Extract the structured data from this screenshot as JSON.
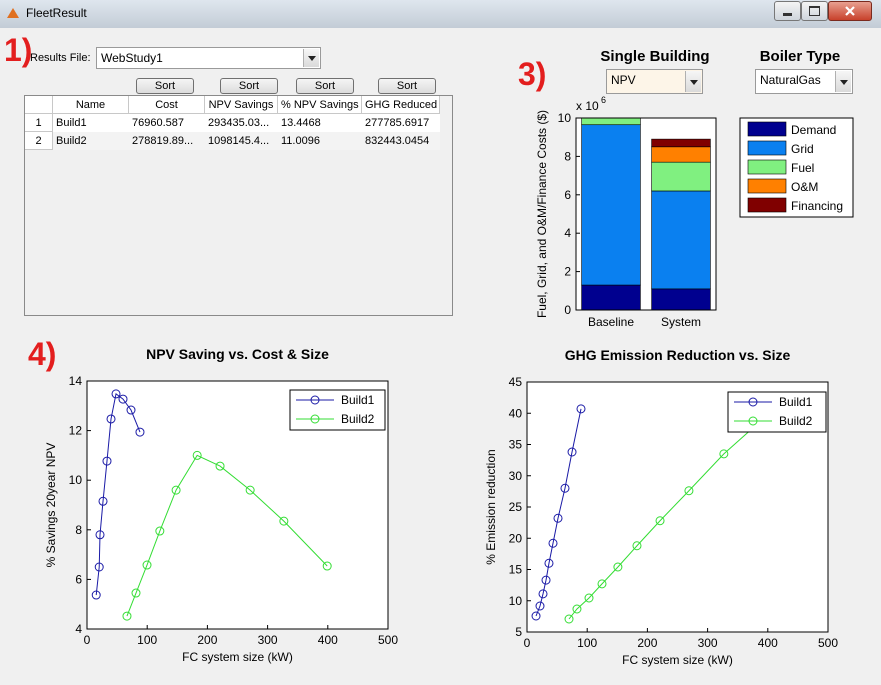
{
  "window": {
    "title": "FleetResult"
  },
  "annotations": [
    "1)",
    "2)",
    "3)",
    "4)"
  ],
  "results_file": {
    "label": "Results File:",
    "value": "WebStudy1"
  },
  "table": {
    "sort_buttons": [
      "Sort",
      "Sort",
      "Sort",
      "Sort"
    ],
    "columns": [
      "Name",
      "Cost",
      "NPV Savings",
      "% NPV Savings",
      "GHG Reduced"
    ],
    "row_headers": [
      "1",
      "2"
    ],
    "rows": [
      [
        "Build1",
        "76960.587",
        "293435.03...",
        "13.4468",
        "277785.6917"
      ],
      [
        "Build2",
        "278819.89...",
        "1098145.4...",
        "11.0096",
        "832443.0454"
      ]
    ]
  },
  "single_building": {
    "label": "Single Building",
    "value": "NPV"
  },
  "boiler_type": {
    "label": "Boiler Type",
    "value": "NaturalGas"
  },
  "chart_data": [
    {
      "type": "bar",
      "stacked": true,
      "categories": [
        "Baseline",
        "System"
      ],
      "ylabel": "Fuel, Grid, and O&M/Finance Costs ($)",
      "y_scale_label": "x 10",
      "y_scale_exponent": "6",
      "ylim": [
        0,
        10
      ],
      "yticks": [
        0,
        2,
        4,
        6,
        8,
        10
      ],
      "legend": "east-outside",
      "series": [
        {
          "name": "Demand",
          "color": "#00008f",
          "values": [
            1.3,
            1.1
          ]
        },
        {
          "name": "Grid",
          "color": "#0a80f0",
          "values": [
            8.35,
            5.1
          ]
        },
        {
          "name": "Fuel",
          "color": "#80f080",
          "values": [
            0.35,
            1.5
          ]
        },
        {
          "name": "O&M",
          "color": "#ff8000",
          "values": [
            0,
            0.8
          ]
        },
        {
          "name": "Financing",
          "color": "#800000",
          "values": [
            0,
            0.4
          ]
        }
      ]
    },
    {
      "type": "line",
      "title": "NPV Saving vs. Cost & Size",
      "xlabel": "FC system size (kW)",
      "ylabel": "% Savings 20year NPV",
      "xlim": [
        0,
        500
      ],
      "xticks": [
        0,
        100,
        200,
        300,
        400,
        500
      ],
      "ylim": [
        4,
        14
      ],
      "yticks": [
        4,
        6,
        8,
        10,
        12,
        14
      ],
      "legend": "northeast",
      "series": [
        {
          "name": "Build1",
          "color": "#1a1aa6",
          "x": [
            15.3,
            20.3,
            21.6,
            26.6,
            33.2,
            39.9,
            48.2,
            59.8,
            73.1,
            88
          ],
          "values": [
            5.37,
            6.5,
            7.8,
            9.15,
            10.77,
            12.47,
            13.48,
            13.27,
            12.83,
            11.94
          ]
        },
        {
          "name": "Build2",
          "color": "#33dd33",
          "x": [
            66.4,
            81.4,
            99.7,
            121,
            148,
            183,
            221,
            271,
            327,
            399
          ],
          "values": [
            4.52,
            5.45,
            6.58,
            7.95,
            9.6,
            11.0,
            10.57,
            9.6,
            8.35,
            6.54
          ]
        }
      ]
    },
    {
      "type": "line",
      "title": "GHG Emission Reduction vs. Size",
      "xlabel": "FC system size (kW)",
      "ylabel": "% Emission reduction",
      "xlim": [
        0,
        500
      ],
      "xticks": [
        0,
        100,
        200,
        300,
        400,
        500
      ],
      "ylim": [
        5,
        45
      ],
      "yticks": [
        5,
        10,
        15,
        20,
        25,
        30,
        35,
        40,
        45
      ],
      "legend": "northeast",
      "series": [
        {
          "name": "Build1",
          "color": "#1a1aa6",
          "x": [
            15,
            21.6,
            26.6,
            31.6,
            36.5,
            43.2,
            51.5,
            63.1,
            74.8,
            89.7
          ],
          "values": [
            7.56,
            9.16,
            11.1,
            13.3,
            16.0,
            19.2,
            23.2,
            28.0,
            33.8,
            40.7
          ]
        },
        {
          "name": "Build2",
          "color": "#33dd33",
          "x": [
            69.8,
            83,
            103,
            124.6,
            151,
            182.7,
            221,
            269,
            327,
            398
          ],
          "values": [
            7.08,
            8.68,
            10.44,
            12.7,
            15.4,
            18.8,
            22.8,
            27.6,
            33.5,
            39.6
          ]
        }
      ]
    }
  ]
}
